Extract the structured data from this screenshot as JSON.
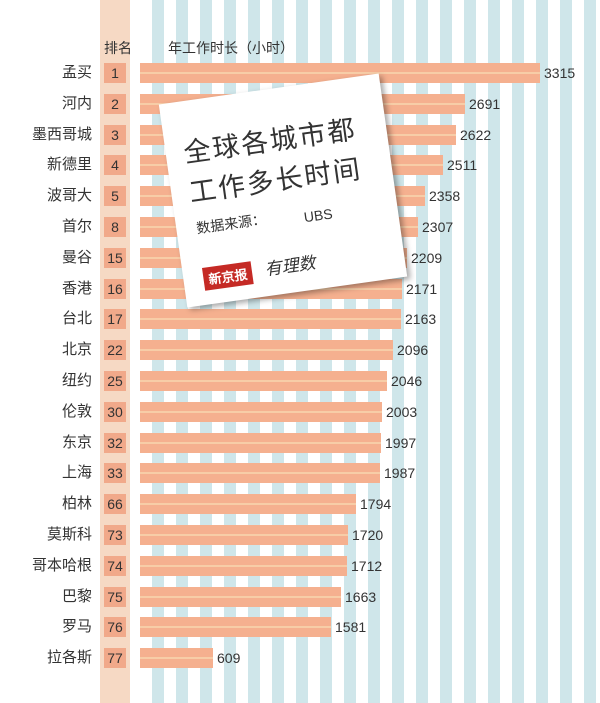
{
  "header": {
    "rank_label": "排名",
    "hours_label": "年工作时长（小时）"
  },
  "card": {
    "title_line1": "全球各城市都",
    "title_line2": "工作多长时间",
    "source_label": "数据来源：",
    "source_value": "UBS",
    "logo_text": "新京报",
    "logo_text2": "有理数"
  },
  "colors": {
    "bar": "#f5b08f",
    "bar_stripe": "#f7cda7",
    "rank_cell": "#f1a98a",
    "rank_column": "#f6d9c4",
    "background_stripe": "#cfe6ea"
  },
  "chart_data": {
    "type": "bar",
    "orientation": "horizontal",
    "title": "全球各城市都工作多长时间",
    "xlabel": "年工作时长（小时）",
    "ylabel": "",
    "categories": [
      "孟买",
      "河内",
      "墨西哥城",
      "新德里",
      "波哥大",
      "首尔",
      "曼谷",
      "香港",
      "台北",
      "北京",
      "纽约",
      "伦敦",
      "东京",
      "上海",
      "柏林",
      "莫斯科",
      "哥本哈根",
      "巴黎",
      "罗马",
      "拉各斯"
    ],
    "ranks": [
      "1",
      "2",
      "3",
      "4",
      "5",
      "8",
      "15",
      "16",
      "17",
      "22",
      "25",
      "30",
      "32",
      "33",
      "66",
      "73",
      "74",
      "75",
      "76",
      "77"
    ],
    "values": [
      3315,
      2691,
      2622,
      2511,
      2358,
      2307,
      2209,
      2171,
      2163,
      2096,
      2046,
      2003,
      1997,
      1987,
      1794,
      1720,
      1712,
      1663,
      1581,
      609
    ],
    "value_labels": [
      "3315",
      "2691",
      "2622",
      "2511",
      "2358",
      "2307",
      "2209",
      "2171",
      "2163",
      "2096",
      "2046",
      "2003",
      "1997",
      "1987",
      "1794",
      "1720",
      "1712",
      "1663",
      "1581",
      "609"
    ],
    "source": "UBS",
    "grid": false
  }
}
